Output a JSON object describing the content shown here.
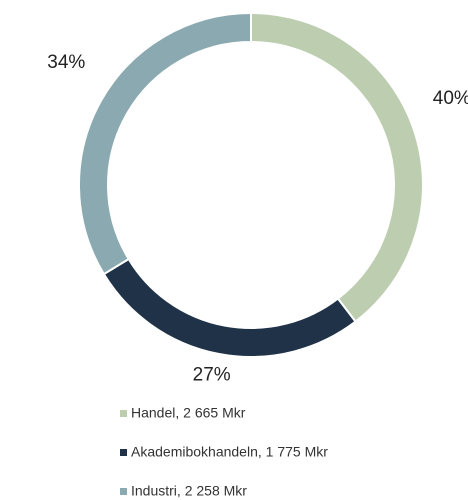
{
  "chart_data": {
    "type": "donut",
    "series": [
      {
        "name": "Handel, 2 665 Mkr",
        "color": "#bccdb0"
      },
      {
        "name": "Akademibokhandeln, 1 775 Mkr",
        "color": "#1f3248"
      },
      {
        "name": "Industri, 2 258 Mkr",
        "color": "#8aa9b0"
      }
    ],
    "values": [
      40,
      27,
      34
    ],
    "value_labels": [
      "40%",
      "27%",
      "34%"
    ]
  }
}
